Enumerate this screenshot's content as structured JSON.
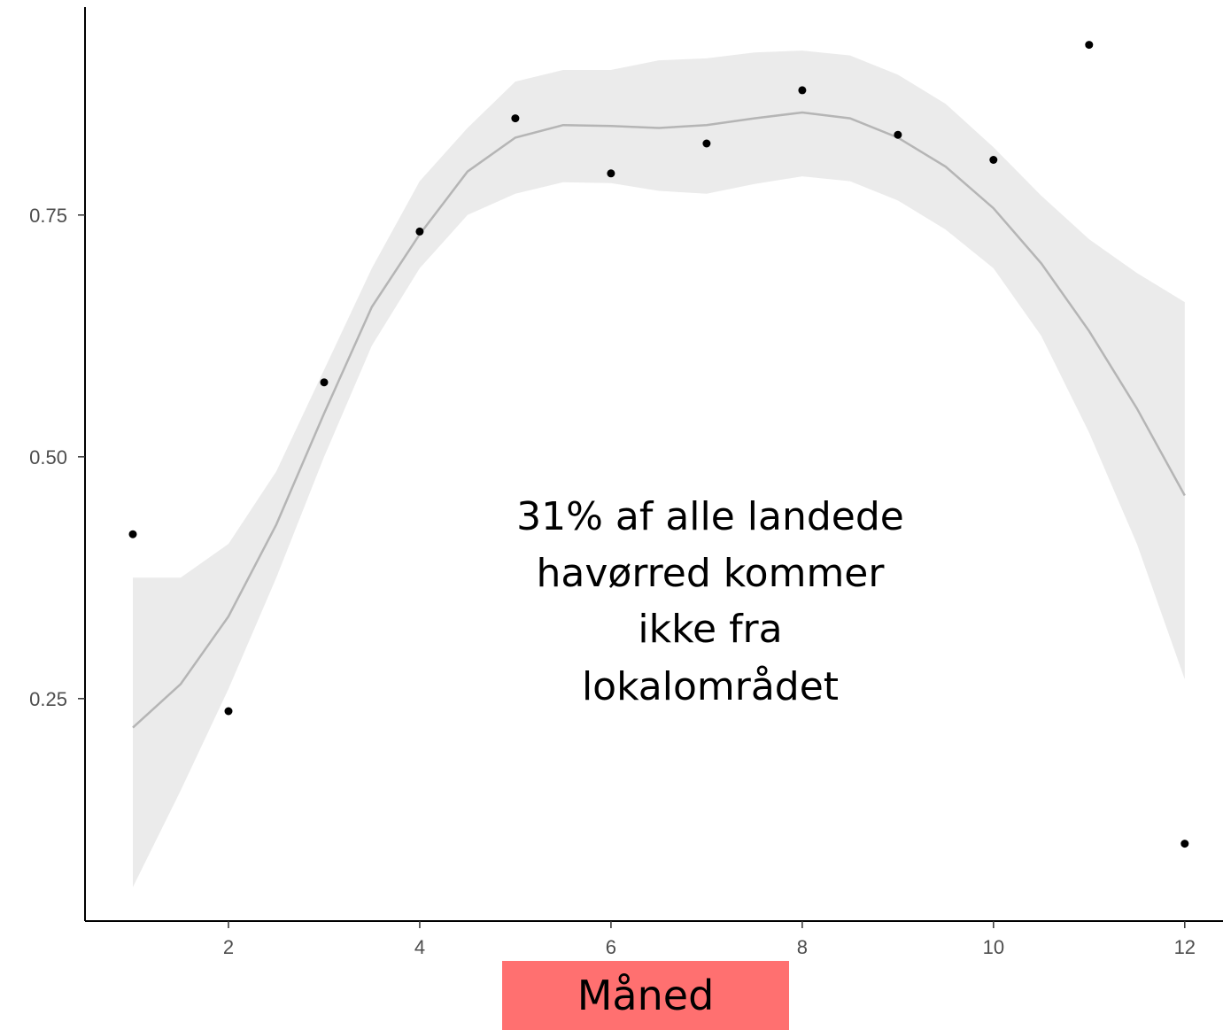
{
  "chart_data": {
    "type": "scatter",
    "title": "",
    "xlabel": "Måned",
    "ylabel": "",
    "xlim": [
      0.5,
      12.4
    ],
    "ylim": [
      0.02,
      0.965
    ],
    "x_ticks": [
      2,
      4,
      6,
      8,
      10,
      12
    ],
    "x_tick_labels": [
      "2",
      "4",
      "6",
      "8",
      "10",
      "12"
    ],
    "y_ticks": [
      0.25,
      0.5,
      0.75
    ],
    "y_tick_labels": [
      "0.25",
      "0.50",
      "0.75"
    ],
    "grid": false,
    "legend": "none",
    "points": {
      "x": [
        1,
        2,
        3,
        4,
        5,
        6,
        7,
        8,
        9,
        10,
        11,
        12
      ],
      "y": [
        0.42,
        0.237,
        0.577,
        0.733,
        0.85,
        0.793,
        0.824,
        0.879,
        0.833,
        0.807,
        0.926,
        0.1
      ]
    },
    "smooth": {
      "x": [
        1,
        1.5,
        2,
        2.5,
        3,
        3.5,
        4,
        4.5,
        5,
        5.5,
        6,
        6.5,
        7,
        7.5,
        8,
        8.5,
        9,
        9.5,
        10,
        10.5,
        11,
        11.5,
        12
      ],
      "fit": [
        0.22,
        0.265,
        0.335,
        0.43,
        0.545,
        0.655,
        0.73,
        0.795,
        0.83,
        0.843,
        0.842,
        0.84,
        0.843,
        0.85,
        0.856,
        0.85,
        0.83,
        0.8,
        0.757,
        0.7,
        0.63,
        0.55,
        0.46
      ],
      "lower": [
        0.055,
        0.155,
        0.26,
        0.375,
        0.5,
        0.615,
        0.695,
        0.75,
        0.772,
        0.784,
        0.783,
        0.775,
        0.772,
        0.782,
        0.79,
        0.785,
        0.765,
        0.735,
        0.695,
        0.625,
        0.525,
        0.41,
        0.27
      ],
      "upper": [
        0.375,
        0.375,
        0.41,
        0.485,
        0.59,
        0.695,
        0.785,
        0.84,
        0.888,
        0.9,
        0.9,
        0.91,
        0.912,
        0.918,
        0.92,
        0.915,
        0.895,
        0.865,
        0.82,
        0.77,
        0.725,
        0.69,
        0.66
      ]
    },
    "colors": {
      "points": "#000000",
      "line": "#b5b5b5",
      "band": "#ebebeb",
      "axis": "#000000",
      "tick_label": "#4d4d4d",
      "xlabel_background": "#ff7070"
    },
    "annotation": {
      "lines": [
        "31% af alle landede",
        "havørred kommer",
        "ikke fra",
        "lokalområdet"
      ]
    }
  }
}
